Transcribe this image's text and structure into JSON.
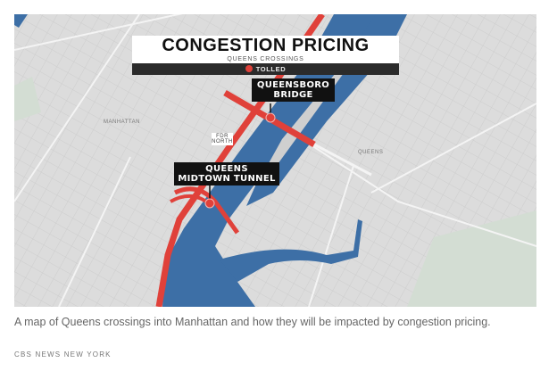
{
  "map": {
    "title": "CONGESTION PRICING",
    "subtitle": "QUEENS CROSSINGS",
    "legend": {
      "label": "TOLLED",
      "color": "#e0413a"
    },
    "labels": {
      "queensboro": "QUEENSBORO BRIDGE",
      "midtown_tunnel": "QUEENS MIDTOWN TUNNEL",
      "fdr": "FDR NORTH",
      "manhattan": "MANHATTAN",
      "queens": "QUEENS"
    },
    "colors": {
      "water": "#3d6fa6",
      "land": "#dcdcdc",
      "tolled": "#e0413a"
    }
  },
  "caption": "A map of Queens crossings into Manhattan and how they will be impacted by congestion pricing.",
  "credit": "CBS NEWS NEW YORK"
}
